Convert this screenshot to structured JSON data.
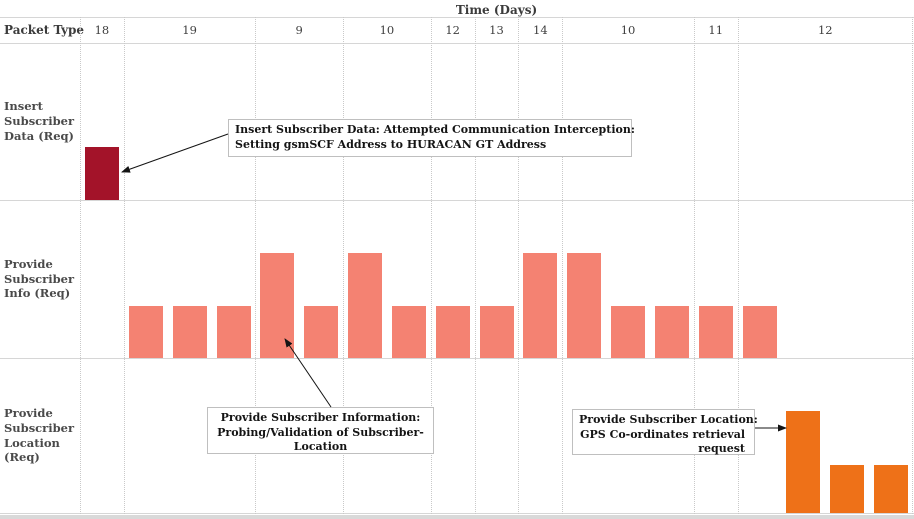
{
  "chart_data": {
    "type": "bar",
    "title": "Time (Days)",
    "row_axis_label": "Packet Type",
    "x_axis": {
      "label": "Time (Days)",
      "day_groups": [
        {
          "day": "18",
          "slots": 1
        },
        {
          "day": "19",
          "slots": 3
        },
        {
          "day": "9",
          "slots": 2
        },
        {
          "day": "10",
          "slots": 2
        },
        {
          "day": "12",
          "slots": 1
        },
        {
          "day": "13",
          "slots": 1
        },
        {
          "day": "14",
          "slots": 1
        },
        {
          "day": "10",
          "slots": 3
        },
        {
          "day": "11",
          "slots": 1
        },
        {
          "day": "12",
          "slots": 4
        }
      ]
    },
    "rows": [
      {
        "label": "Insert Subscriber Data (Req)",
        "color": "#a31329",
        "slot_start": 0,
        "values": [
          1
        ]
      },
      {
        "label": "Provide Subscriber Info (Req)",
        "color": "#f48272",
        "slot_start": 1,
        "values": [
          1,
          1,
          1,
          2,
          1,
          2,
          1,
          1,
          1,
          2,
          2,
          1,
          1,
          1,
          1
        ]
      },
      {
        "label": "Provide Subscriber Location (Req)",
        "color": "#ee7118",
        "slot_start": 16,
        "values": [
          2,
          1,
          1
        ]
      }
    ],
    "annotations": [
      {
        "lines": [
          "Insert Subscriber Data: Attempted Communication Interception:",
          "Setting gsmSCF Address to HURACAN GT Address"
        ],
        "align": "left",
        "arrow_to": "insert-subscriber-data-bar"
      },
      {
        "lines": [
          "Provide Subscriber Information:",
          "Probing/Validation of Subscriber-",
          "Location"
        ],
        "align": "center",
        "arrow_to": "provide-subscriber-info-bar"
      },
      {
        "lines": [
          "Provide Subscriber Location:",
          "GPS Co-ordinates retrieval",
          "request"
        ],
        "align": "right",
        "arrow_to": "provide-subscriber-location-bar"
      }
    ],
    "colors": {
      "insert_subscriber_data": "#a31329",
      "provide_subscriber_info": "#f48272",
      "provide_subscriber_location": "#ee7118",
      "gridline": "#c9c9c9",
      "row_line": "#d6d6d6",
      "annotation_border": "#bfbfbf"
    }
  }
}
